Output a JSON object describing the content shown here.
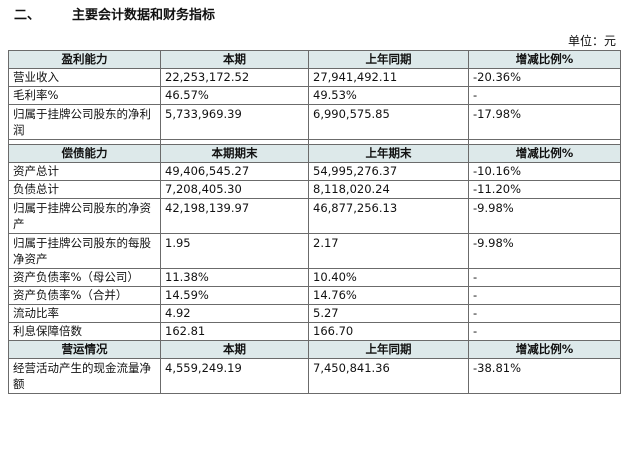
{
  "heading": {
    "number": "二、",
    "title": "主要会计数据和财务指标"
  },
  "unit": "单位：元",
  "sections": {
    "profit": {
      "headers": [
        "盈利能力",
        "本期",
        "上年同期",
        "增减比例%"
      ],
      "rows": [
        [
          "营业收入",
          "22,253,172.52",
          "27,941,492.11",
          "-20.36%"
        ],
        [
          "毛利率%",
          "46.57%",
          "49.53%",
          "-"
        ],
        [
          "归属于挂牌公司股东的净利润",
          "5,733,969.39",
          "6,990,575.85",
          "-17.98%"
        ]
      ]
    },
    "solvency": {
      "headers": [
        "偿债能力",
        "本期期末",
        "上年期末",
        "增减比例%"
      ],
      "rows": [
        [
          "资产总计",
          "49,406,545.27",
          "54,995,276.37",
          "-10.16%"
        ],
        [
          "负债总计",
          "7,208,405.30",
          "8,118,020.24",
          "-11.20%"
        ],
        [
          "归属于挂牌公司股东的净资产",
          "42,198,139.97",
          "46,877,256.13",
          "-9.98%"
        ],
        [
          "归属于挂牌公司股东的每股净资产",
          "1.95",
          "2.17",
          "-9.98%"
        ],
        [
          "资产负债率%（母公司）",
          "11.38%",
          "10.40%",
          "-"
        ],
        [
          "资产负债率%（合并）",
          "14.59%",
          "14.76%",
          "-"
        ],
        [
          "流动比率",
          "4.92",
          "5.27",
          "-"
        ],
        [
          "利息保障倍数",
          "162.81",
          "166.70",
          "-"
        ]
      ]
    },
    "operation": {
      "headers": [
        "营运情况",
        "本期",
        "上年同期",
        "增减比例%"
      ],
      "rows": [
        [
          "经营活动产生的现金流量净额",
          "4,559,249.19",
          "7,450,841.36",
          "-38.81%"
        ]
      ]
    }
  }
}
